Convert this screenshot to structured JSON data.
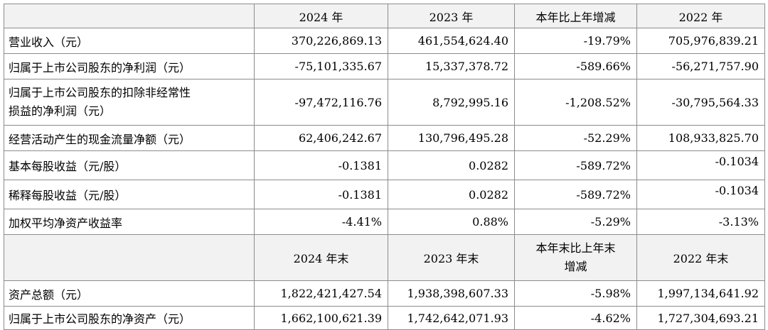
{
  "header1": [
    "",
    "2024 年",
    "2023 年",
    "本年比上年增减",
    "2022 年"
  ],
  "rows1": [
    {
      "label": "营业收入（元）",
      "v": [
        "370,226,869.13",
        "461,554,624.40",
        "-19.79%",
        "705,976,839.21"
      ]
    },
    {
      "label": "归属于上市公司股东的净利润（元）",
      "v": [
        "-75,101,335.67",
        "15,337,378.72",
        "-589.66%",
        "-56,271,757.90"
      ]
    },
    {
      "label_line1": "归属于上市公司股东的扣除非经常性",
      "label_line2": "损益的净利润（元）",
      "v": [
        "-97,472,116.76",
        "8,792,995.16",
        "-1,208.52%",
        "-30,795,564.33"
      ]
    },
    {
      "label": "经营活动产生的现金流量净额（元）",
      "v": [
        "62,406,242.67",
        "130,796,495.28",
        "-52.29%",
        "108,933,825.70"
      ]
    },
    {
      "label": "基本每股收益（元/股）",
      "v": [
        "-0.1381",
        "0.0282",
        "-589.72%",
        "-0.1034"
      ]
    },
    {
      "label": "稀释每股收益（元/股）",
      "v": [
        "-0.1381",
        "0.0282",
        "-589.72%",
        "-0.1034"
      ]
    },
    {
      "label": "加权平均净资产收益率",
      "v": [
        "-4.41%",
        "0.88%",
        "-5.29%",
        "-3.13%"
      ]
    }
  ],
  "header2": {
    "c1": "2024 年末",
    "c2": "2023 年末",
    "c3_line1": "本年末比上年末",
    "c3_line2": "增减",
    "c4": "2022 年末"
  },
  "rows2": [
    {
      "label": "资产总额（元）",
      "v": [
        "1,822,421,427.54",
        "1,938,398,607.33",
        "-5.98%",
        "1,997,134,641.92"
      ]
    },
    {
      "label": "归属于上市公司股东的净资产（元）",
      "v": [
        "1,662,100,621.39",
        "1,742,642,071.93",
        "-4.62%",
        "1,727,304,693.21"
      ]
    }
  ]
}
